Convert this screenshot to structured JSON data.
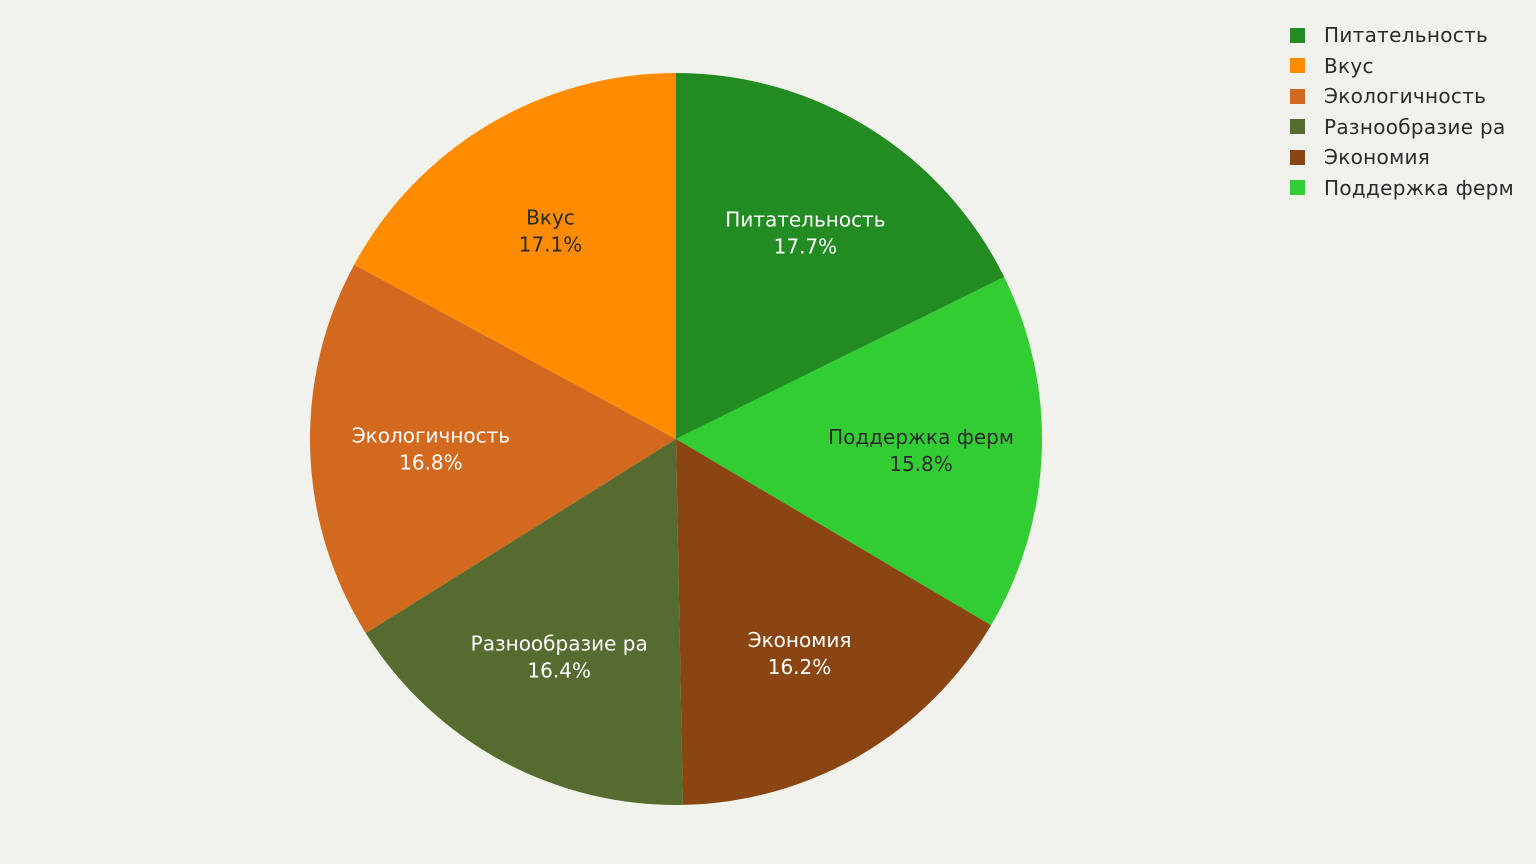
{
  "chart_data": {
    "type": "pie",
    "title": "",
    "slices": [
      {
        "label": "Питательность",
        "value": 17.7,
        "percent_label": "17.7%",
        "color": "#228b22",
        "text_color": "#ffffff"
      },
      {
        "label": "Поддержка ферм",
        "value": 15.8,
        "percent_label": "15.8%",
        "color": "#32cd32",
        "text_color": "#2a2a2a"
      },
      {
        "label": "Экономия",
        "value": 16.2,
        "percent_label": "16.2%",
        "color": "#8b4513",
        "text_color": "#ffffff"
      },
      {
        "label": "Разнообразие ра",
        "value": 16.4,
        "percent_label": "16.4%",
        "color": "#556b2f",
        "text_color": "#ffffff"
      },
      {
        "label": "Экологичность",
        "value": 16.8,
        "percent_label": "16.8%",
        "color": "#d2691e",
        "text_color": "#ffffff"
      },
      {
        "label": "Вкус",
        "value": 17.1,
        "percent_label": "17.1%",
        "color": "#ff8c00",
        "text_color": "#2a2a2a"
      }
    ],
    "legend": {
      "placement": "top-right",
      "items": [
        {
          "label": "Питательность",
          "color": "#228b22"
        },
        {
          "label": "Вкус",
          "color": "#ff8c00"
        },
        {
          "label": "Экологичность",
          "color": "#d2691e"
        },
        {
          "label": "Разнообразие ра",
          "color": "#556b2f"
        },
        {
          "label": "Экономия",
          "color": "#8b4513"
        },
        {
          "label": "Поддержка ферм",
          "color": "#32cd32"
        }
      ]
    },
    "direction": "clockwise",
    "start_angle": "12 o'clock"
  }
}
